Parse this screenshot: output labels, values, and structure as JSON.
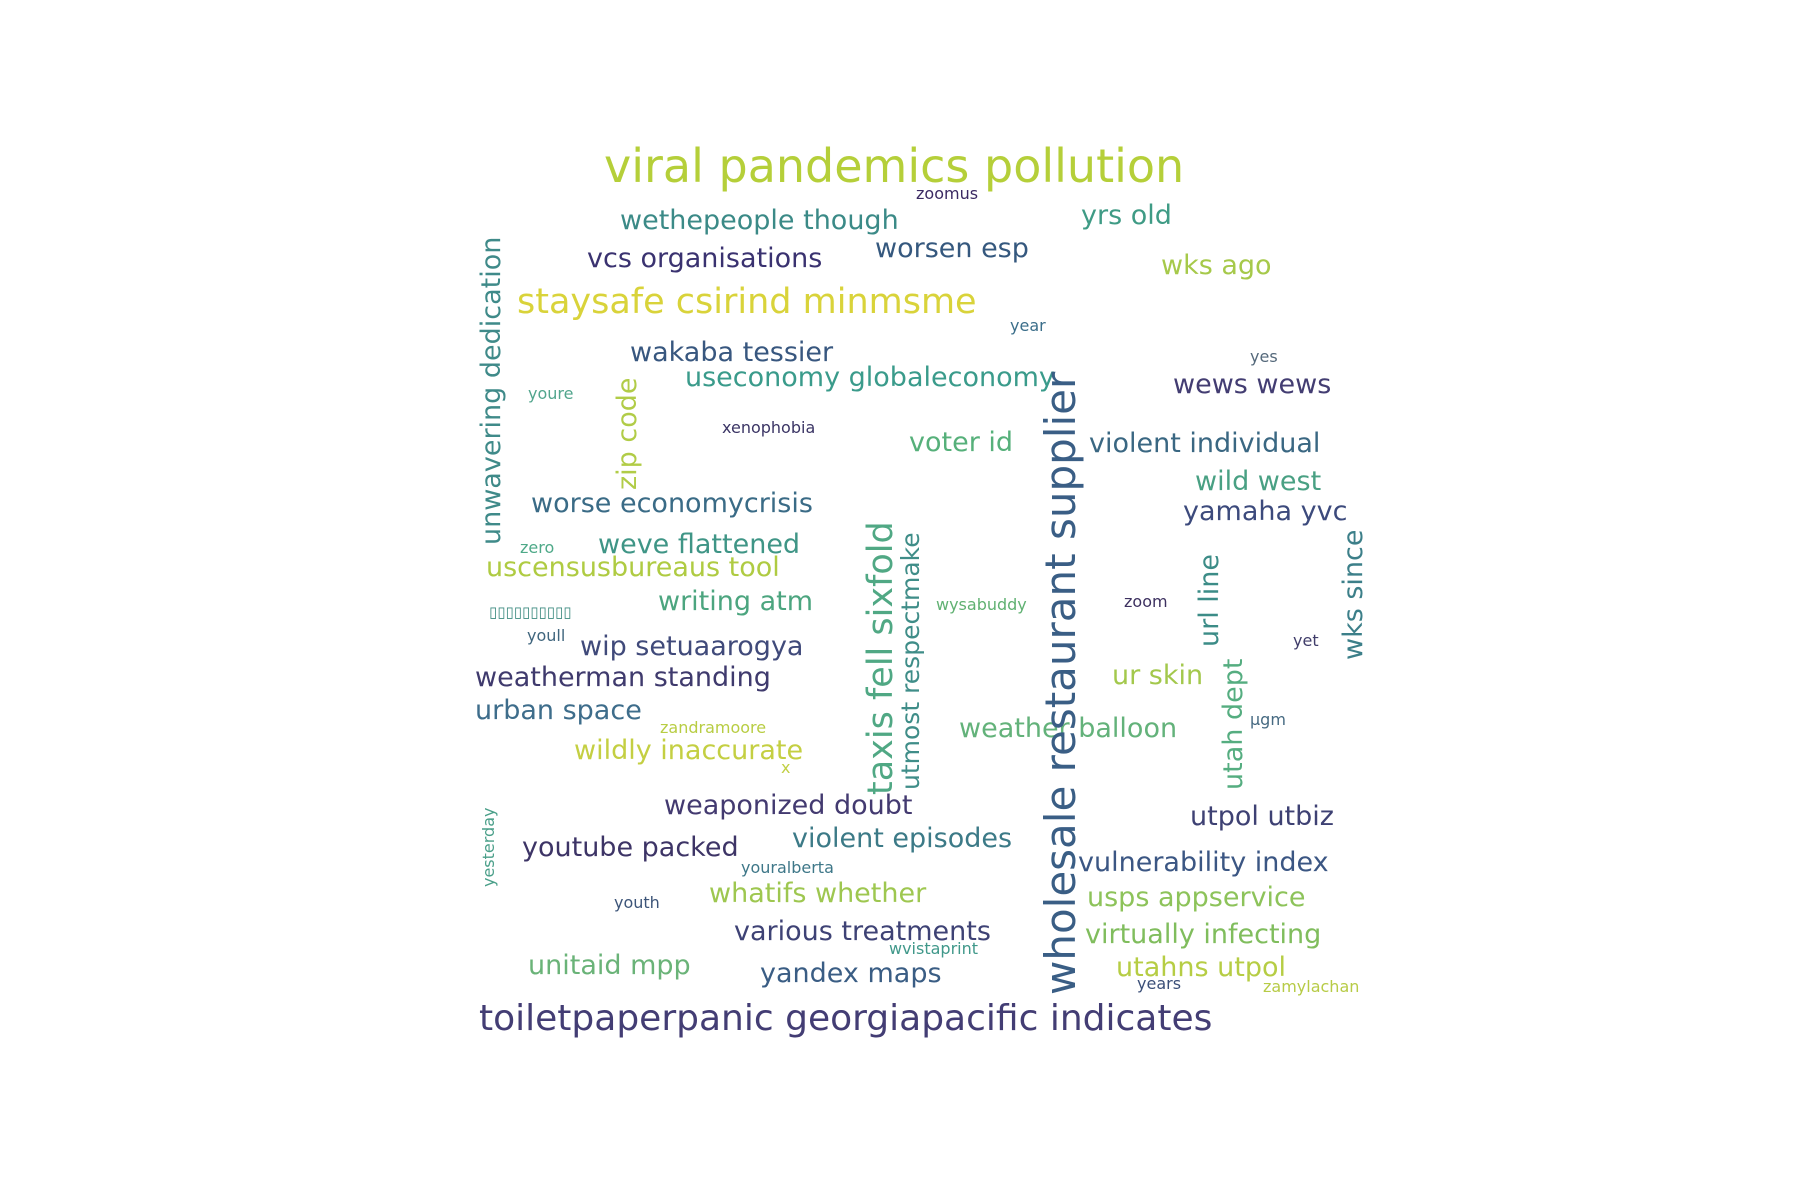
{
  "words": [
    {
      "text": "viral pandemics pollution",
      "color": "#b5cf39"
    },
    {
      "text": "zoomus",
      "color": "#3b2a63"
    },
    {
      "text": "wethepeople though",
      "color": "#3b8a87"
    },
    {
      "text": "yrs old",
      "color": "#3f9b85"
    },
    {
      "text": "vcs organisations",
      "color": "#3a3270"
    },
    {
      "text": "worsen esp",
      "color": "#35587e"
    },
    {
      "text": "wks ago",
      "color": "#a6c94a"
    },
    {
      "text": "staysafe csirind minmsme",
      "color": "#d9d33a"
    },
    {
      "text": "year",
      "color": "#3b6e8a"
    },
    {
      "text": "yes",
      "color": "#55697b"
    },
    {
      "text": "wakaba tessier",
      "color": "#38577f"
    },
    {
      "text": "useconomy globaleconomy",
      "color": "#3a9b8b"
    },
    {
      "text": "wews wews",
      "color": "#433d72"
    },
    {
      "text": "youre",
      "color": "#52a58d"
    },
    {
      "text": "xenophobia",
      "color": "#3b3565"
    },
    {
      "text": "voter id",
      "color": "#56b07a"
    },
    {
      "text": "violent individual",
      "color": "#3a6782"
    },
    {
      "text": "wild west",
      "color": "#49a083"
    },
    {
      "text": "worse economycrisis",
      "color": "#3a6b86"
    },
    {
      "text": "yamaha yvc",
      "color": "#3c4a7c"
    },
    {
      "text": "zero",
      "color": "#4ea988"
    },
    {
      "text": "weve flattened",
      "color": "#3f9586"
    },
    {
      "text": "uscensusbureaus tool",
      "color": "#afcb42"
    },
    {
      "text": "writing atm",
      "color": "#4ca57f"
    },
    {
      "text": "wysabuddy",
      "color": "#60b172"
    },
    {
      "text": "zoom",
      "color": "#3d3160"
    },
    {
      "text": "▯▯▯▯▯▯▯▯▯▯",
      "color": "#3d8b80"
    },
    {
      "text": "youll",
      "color": "#40667e"
    },
    {
      "text": "wip setuaarogya",
      "color": "#404a7a"
    },
    {
      "text": "yet",
      "color": "#403d6a"
    },
    {
      "text": "weatherman standing",
      "color": "#3f3a6d"
    },
    {
      "text": "ur skin",
      "color": "#a3c84c"
    },
    {
      "text": "urban space",
      "color": "#3e6d8b"
    },
    {
      "text": "zandramoore",
      "color": "#b8cd43"
    },
    {
      "text": "µgm",
      "color": "#466a82"
    },
    {
      "text": "weather balloon",
      "color": "#63b27a"
    },
    {
      "text": "wildly inaccurate",
      "color": "#c4cf42"
    },
    {
      "text": "x",
      "color": "#c2d045"
    },
    {
      "text": "weaponized doubt",
      "color": "#433a70"
    },
    {
      "text": "utpol utbiz",
      "color": "#3e4173"
    },
    {
      "text": "violent episodes",
      "color": "#3c7a87"
    },
    {
      "text": "youtube packed",
      "color": "#3d3466"
    },
    {
      "text": "youralberta",
      "color": "#3e7788"
    },
    {
      "text": "vulnerability index",
      "color": "#3b5683"
    },
    {
      "text": "whatifs whether",
      "color": "#9ec750"
    },
    {
      "text": "usps appservice",
      "color": "#8dc35a"
    },
    {
      "text": "youth",
      "color": "#3d5579"
    },
    {
      "text": "various treatments",
      "color": "#3e4275"
    },
    {
      "text": "virtually infecting",
      "color": "#80bd5d"
    },
    {
      "text": "wvistaprint",
      "color": "#40988a"
    },
    {
      "text": "unitaid mpp",
      "color": "#6ab378"
    },
    {
      "text": "yandex maps",
      "color": "#3a5d84"
    },
    {
      "text": "utahns utpol",
      "color": "#b6cd44"
    },
    {
      "text": "years",
      "color": "#3b4f78"
    },
    {
      "text": "zamylachan",
      "color": "#b7cb46"
    },
    {
      "text": "toiletpaperpanic georgiapacific indicates",
      "color": "#433d74"
    },
    {
      "text": "wholesale restaurant supplier",
      "color": "#3a5e85"
    },
    {
      "text": "taxis fell sixfold",
      "color": "#50a884"
    },
    {
      "text": "unwavering dedication",
      "color": "#3f8a89"
    },
    {
      "text": "zip code",
      "color": "#b1cc47"
    },
    {
      "text": "utmost respectmake",
      "color": "#3f8d88"
    },
    {
      "text": "url line",
      "color": "#3c8c87"
    },
    {
      "text": "wks since",
      "color": "#3c7f89"
    },
    {
      "text": "utah dept",
      "color": "#55ad80"
    },
    {
      "text": "yesterday",
      "color": "#4a9f89"
    }
  ]
}
